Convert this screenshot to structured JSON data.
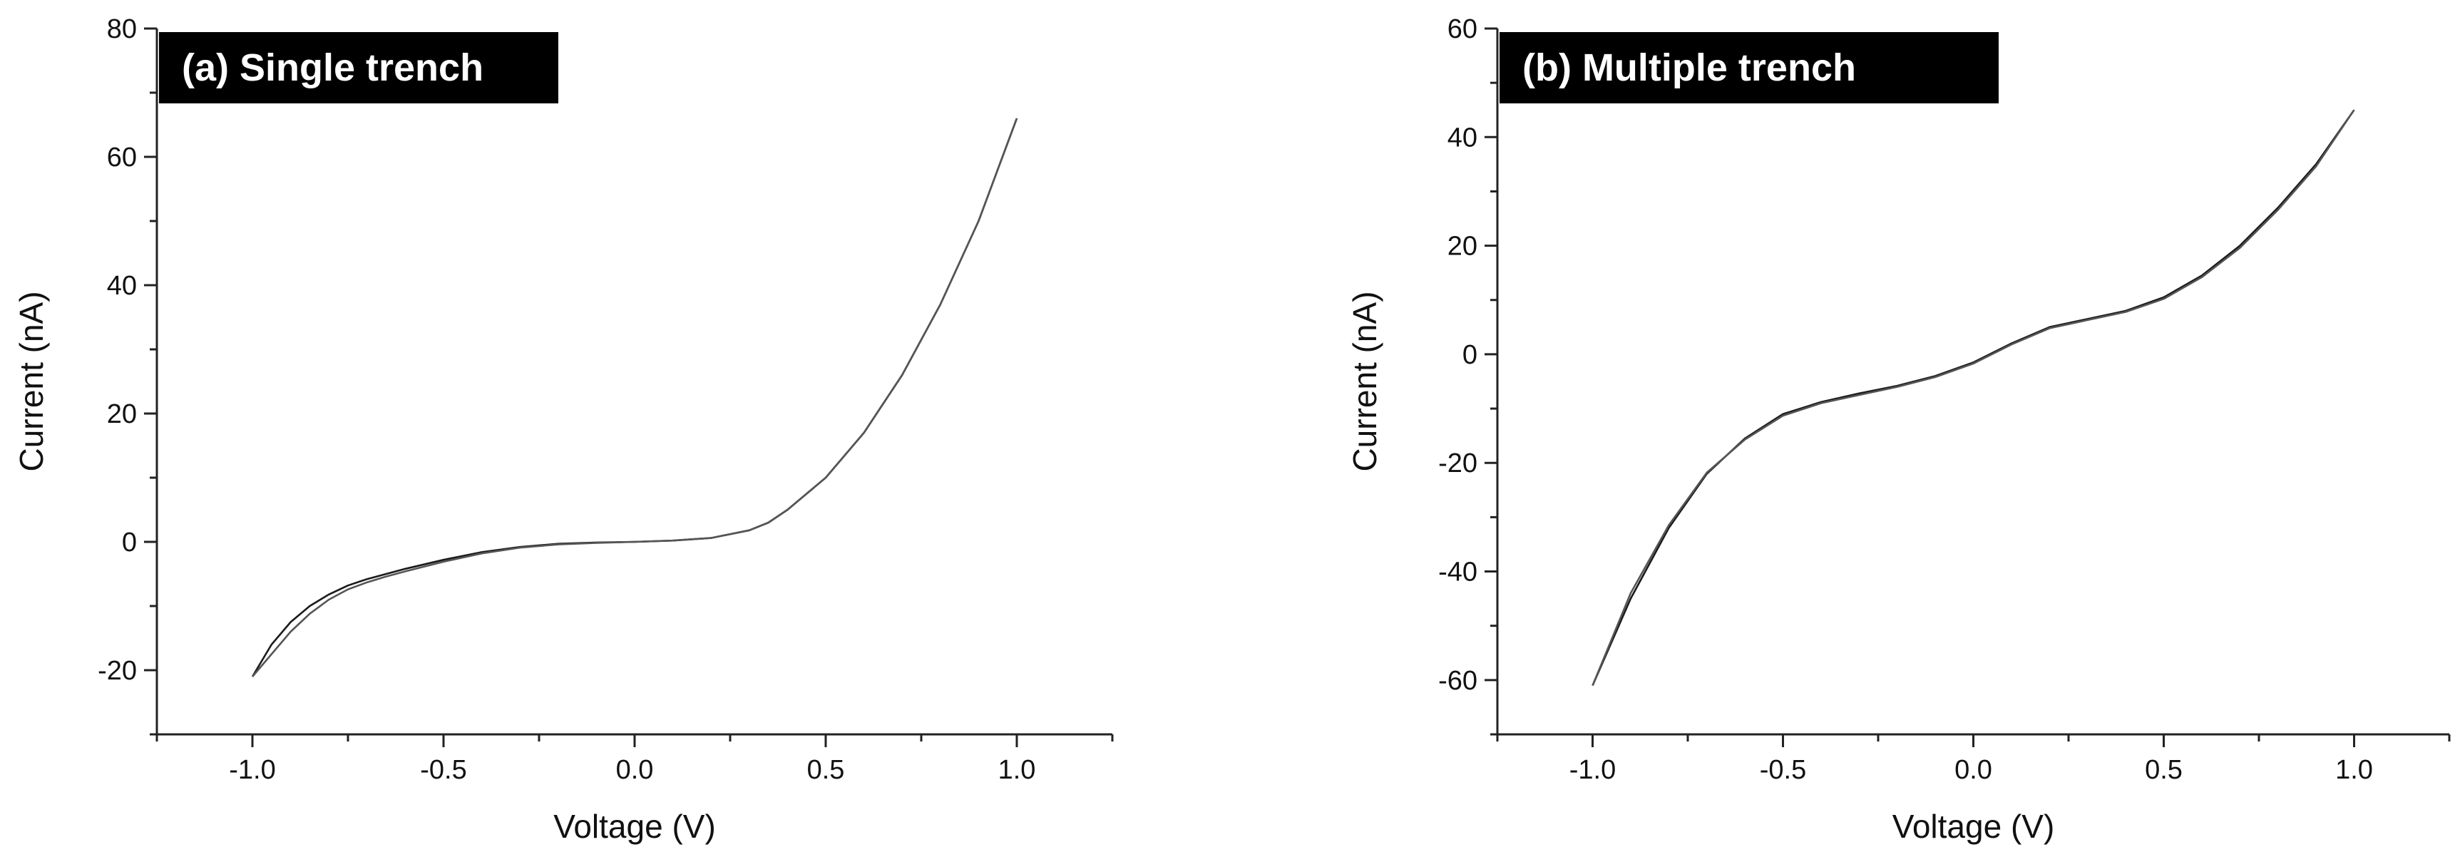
{
  "chart_data": [
    {
      "type": "line",
      "title": "(a) Single trench",
      "xlabel": "Voltage (V)",
      "ylabel": "Current (nA)",
      "xlim": [
        -1.25,
        1.25
      ],
      "ylim": [
        -30,
        80
      ],
      "xticks": [
        -1.0,
        -0.5,
        0.0,
        0.5,
        1.0
      ],
      "xtick_labels": [
        "-1.0",
        "-0.5",
        "0.0",
        "0.5",
        "1.0"
      ],
      "yticks": [
        -20,
        0,
        20,
        40,
        60,
        80
      ],
      "ytick_labels": [
        "-20",
        "0",
        "20",
        "40",
        "60",
        "80"
      ],
      "grid": false,
      "legend": "none",
      "series": [
        {
          "x": [
            -1.0,
            -0.95,
            -0.9,
            -0.85,
            -0.8,
            -0.75,
            -0.7,
            -0.65,
            -0.6,
            -0.5,
            -0.4,
            -0.3,
            -0.2,
            -0.1,
            0.0,
            0.1,
            0.2,
            0.3,
            0.35,
            0.4,
            0.5,
            0.6,
            0.7,
            0.8,
            0.9,
            1.0
          ],
          "values": [
            -21,
            -16,
            -12.5,
            -10,
            -8.2,
            -6.8,
            -5.8,
            -5,
            -4.2,
            -2.8,
            -1.6,
            -0.8,
            -0.3,
            -0.1,
            0,
            0.2,
            0.6,
            1.8,
            3,
            5,
            10,
            17,
            26,
            37,
            50,
            66
          ]
        },
        {
          "x": [
            -1.0,
            -0.95,
            -0.9,
            -0.85,
            -0.8,
            -0.75,
            -0.7,
            -0.65,
            -0.6,
            -0.5,
            -0.4,
            -0.3,
            -0.2,
            -0.1,
            0.0,
            0.1,
            0.2,
            0.3,
            0.35,
            0.4,
            0.5,
            0.6,
            0.7,
            0.8,
            0.9,
            1.0
          ],
          "values": [
            -21,
            -17.5,
            -14,
            -11.2,
            -9,
            -7.4,
            -6.3,
            -5.4,
            -4.6,
            -3.1,
            -1.8,
            -0.9,
            -0.4,
            -0.15,
            0,
            0.2,
            0.6,
            1.8,
            3,
            5,
            10,
            17,
            26,
            37,
            50,
            66
          ]
        }
      ]
    },
    {
      "type": "line",
      "title": "(b) Multiple trench",
      "xlabel": "Voltage (V)",
      "ylabel": "Current (nA)",
      "xlim": [
        -1.25,
        1.25
      ],
      "ylim": [
        -70,
        60
      ],
      "xticks": [
        -1.0,
        -0.5,
        0.0,
        0.5,
        1.0
      ],
      "xtick_labels": [
        "-1.0",
        "-0.5",
        "0.0",
        "0.5",
        "1.0"
      ],
      "yticks": [
        -60,
        -40,
        -20,
        0,
        20,
        40,
        60
      ],
      "ytick_labels": [
        "-60",
        "-40",
        "-20",
        "0",
        "20",
        "40",
        "60"
      ],
      "grid": false,
      "legend": "none",
      "series": [
        {
          "x": [
            -1.0,
            -0.9,
            -0.8,
            -0.7,
            -0.6,
            -0.5,
            -0.4,
            -0.3,
            -0.2,
            -0.1,
            0.0,
            0.1,
            0.2,
            0.3,
            0.4,
            0.5,
            0.6,
            0.7,
            0.8,
            0.9,
            1.0
          ],
          "values": [
            -61,
            -45,
            -32,
            -22,
            -15.5,
            -11,
            -8.8,
            -7.2,
            -5.8,
            -4,
            -1.5,
            2,
            5,
            6.5,
            8,
            10.5,
            14.5,
            20,
            27,
            35,
            45
          ]
        },
        {
          "x": [
            -1.0,
            -0.9,
            -0.8,
            -0.7,
            -0.6,
            -0.5,
            -0.4,
            -0.3,
            -0.2,
            -0.1,
            0.0,
            0.1,
            0.2,
            0.3,
            0.4,
            0.5,
            0.6,
            0.7,
            0.8,
            0.9,
            1.0
          ],
          "values": [
            -61,
            -44,
            -31.5,
            -21.8,
            -15.7,
            -11.3,
            -9,
            -7.5,
            -6,
            -4.2,
            -1.7,
            1.8,
            4.8,
            6.3,
            7.8,
            10.2,
            14.2,
            19.6,
            26.6,
            34.6,
            45
          ]
        }
      ]
    }
  ]
}
